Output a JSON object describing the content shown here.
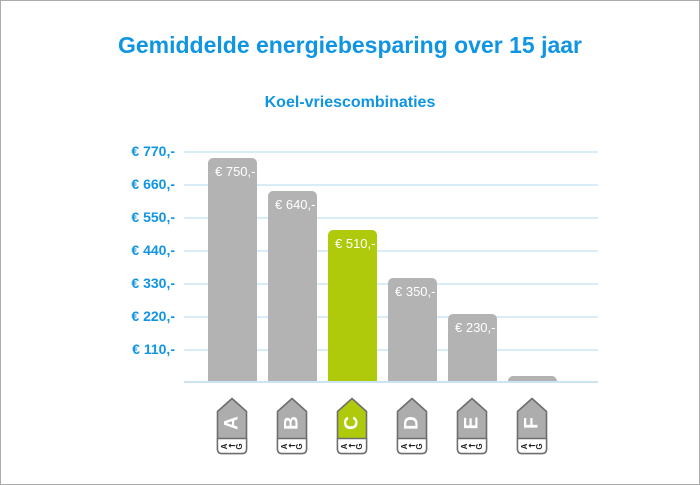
{
  "chart_data": {
    "type": "bar",
    "title": "Gemiddelde energiebesparing over 15 jaar",
    "subtitle": "Koel-vriescombinaties",
    "categories": [
      "A",
      "B",
      "C",
      "D",
      "E",
      "F"
    ],
    "values": [
      750,
      640,
      510,
      350,
      230,
      25
    ],
    "bar_labels": [
      "€ 750,-",
      "€ 640,-",
      "€ 510,-",
      "€ 350,-",
      "€ 230,-",
      ""
    ],
    "highlight_index": 2,
    "y_ticks": [
      "€ 770,-",
      "€ 660,-",
      "€ 550,-",
      "€ 440,-",
      "€ 330,-",
      "€ 220,-",
      "€ 110,-"
    ],
    "y_tick_values": [
      770,
      660,
      550,
      440,
      330,
      220,
      110
    ],
    "ylim": [
      0,
      805
    ],
    "grid": true,
    "legend": "none",
    "xlabel": "",
    "ylabel": "",
    "x_axis_icon_type": "energy-label-pentagon",
    "scale_glyphs": [
      "A",
      "←",
      "G"
    ],
    "colors": {
      "bar": "#b3b3b3",
      "highlight": "#afca0b",
      "icon": "#adadad",
      "icon_border": "#6e6e6e",
      "title": "#1095e3",
      "tick_label": "#1095e3",
      "bar_label": "#ffffff",
      "gridline": "#d9ecf8",
      "baseline": "#cce3f4"
    }
  }
}
